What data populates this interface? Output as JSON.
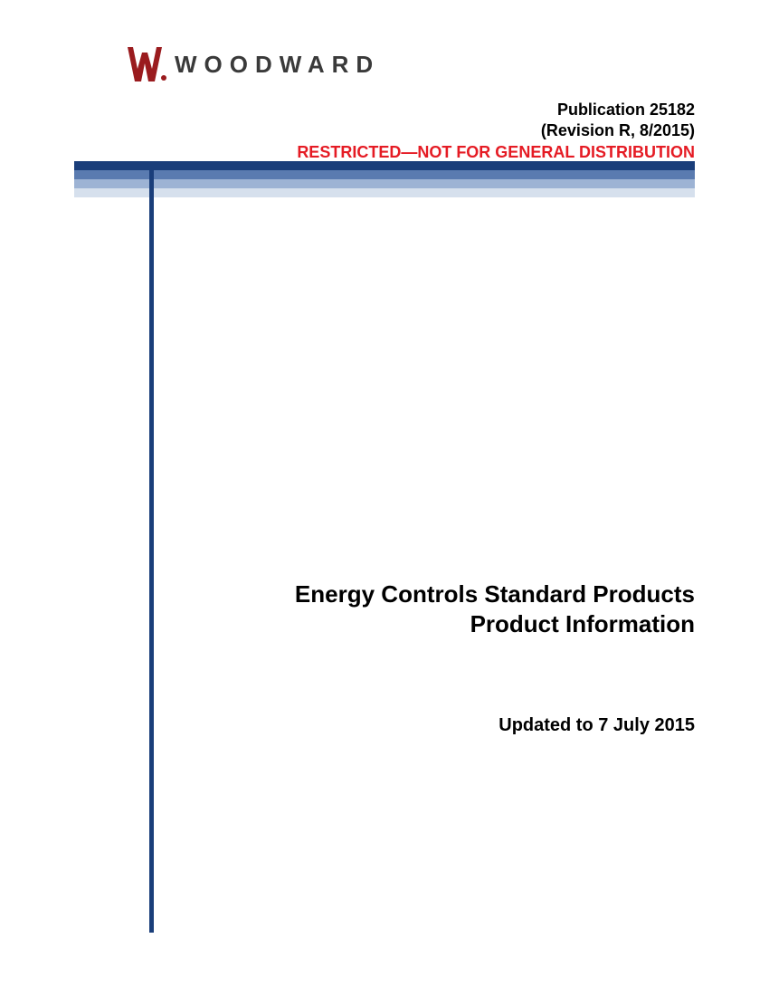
{
  "logo": {
    "brand_text": "WOODWARD",
    "mark_color": "#9a1b1e",
    "text_color": "#3a3a3a",
    "text_fontsize": 26,
    "letter_spacing": 8
  },
  "header": {
    "publication": "Publication 25182",
    "revision": "(Revision R, 8/2015)",
    "restricted": "RESTRICTED—NOT FOR GENERAL DISTRIBUTION",
    "pub_color": "#000000",
    "restricted_color": "#e51b24",
    "fontsize": 18
  },
  "banner": {
    "stripes": [
      {
        "color": "#1a3e7a",
        "height": 10
      },
      {
        "color": "#5a7bb0",
        "height": 10
      },
      {
        "color": "#9db3d4",
        "height": 10
      },
      {
        "color": "#d6e0ed",
        "height": 10
      }
    ]
  },
  "vertical_rule": {
    "color": "#1a3e7a",
    "width": 5
  },
  "main": {
    "title_line1": "Energy Controls Standard Products",
    "title_line2": "Product Information",
    "title_fontsize": 26,
    "title_color": "#000000",
    "updated": "Updated to 7 July 2015",
    "updated_fontsize": 20
  },
  "page_bg": "#ffffff"
}
